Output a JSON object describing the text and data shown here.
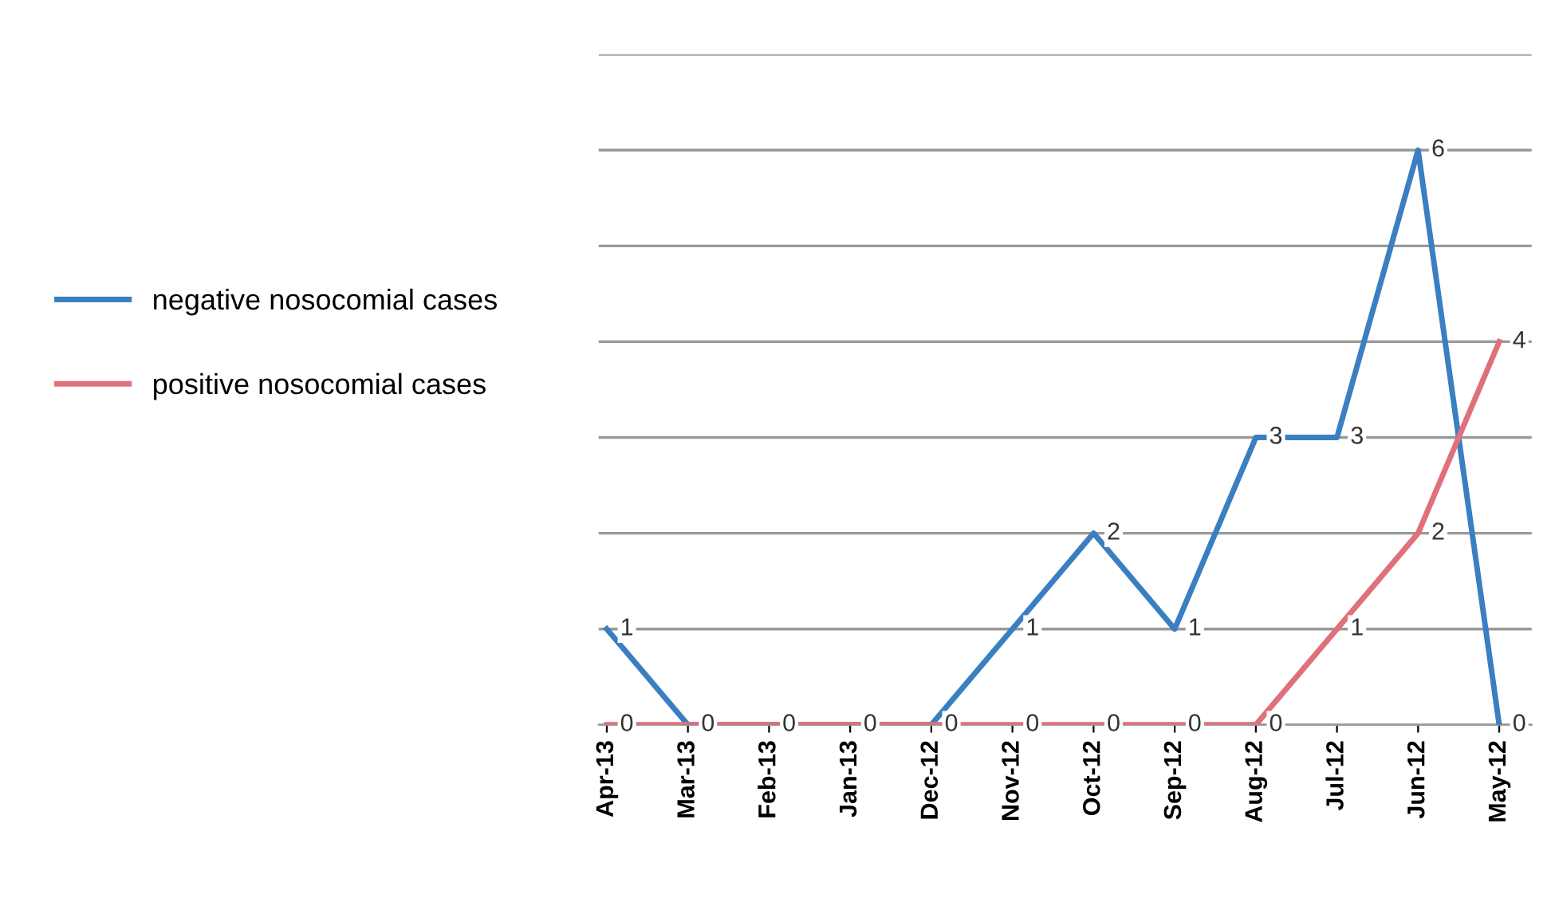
{
  "chart_data": {
    "type": "line",
    "categories": [
      "Apr-13",
      "Mar-13",
      "Feb-13",
      "Jan-13",
      "Dec-12",
      "Nov-12",
      "Oct-12",
      "Sep-12",
      "Aug-12",
      "Jul-12",
      "Jun-12",
      "May-12"
    ],
    "series": [
      {
        "name": "negative nosocomial cases",
        "color": "#3a7fc1",
        "values": [
          1,
          0,
          0,
          0,
          0,
          1,
          2,
          1,
          3,
          3,
          6,
          0
        ],
        "value_labels": [
          "1",
          "0",
          "0",
          "0",
          "0",
          "1",
          "2",
          "1",
          "3",
          "3",
          "6",
          "0"
        ]
      },
      {
        "name": "positive nosocomial cases",
        "color": "#e0707a",
        "values": [
          0,
          0,
          0,
          0,
          0,
          0,
          0,
          0,
          0,
          1,
          2,
          4
        ],
        "value_labels": [
          "0",
          null,
          null,
          null,
          null,
          "0",
          "0",
          "0",
          "0",
          "1",
          "2",
          "4"
        ]
      }
    ],
    "ylim": [
      0,
      7
    ],
    "yticks": [
      {
        "value": 0,
        "label": null
      },
      {
        "value": 1,
        "label": null
      },
      {
        "value": 2,
        "label": null
      },
      {
        "value": 3,
        "label": null
      },
      {
        "value": 4,
        "label": null
      },
      {
        "value": 5,
        "label": null
      },
      {
        "value": 6,
        "label": null
      },
      {
        "value": 7,
        "label": null
      }
    ],
    "grid": "y",
    "legend": "left",
    "tick_labels": "x",
    "marker": "none",
    "line_style": "solid"
  }
}
